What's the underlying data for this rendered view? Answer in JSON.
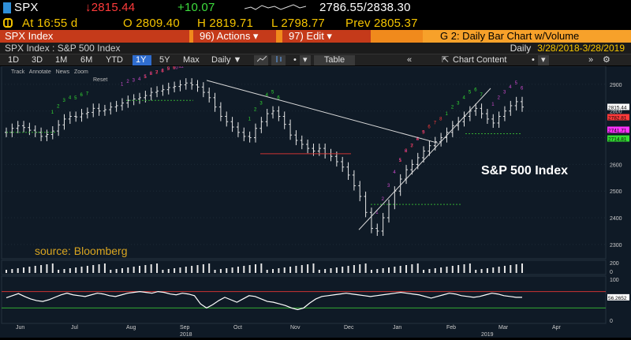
{
  "quote": {
    "ticker": "SPX",
    "last": "↓2815.44",
    "change": "+10.07",
    "range52": "2786.55/2838.30",
    "time": "At 16:55 d",
    "open": "O 2809.40",
    "high": "H 2819.71",
    "low": "L 2798.77",
    "prev": "Prev 2805.37"
  },
  "function_bar": {
    "title": "SPX Index",
    "actions": "96) Actions ▾",
    "edit": "97) Edit ▾",
    "chart_name": "G 2: Daily Bar Chart w/Volume"
  },
  "subtitle": {
    "security": "SPX Index : S&P 500 Index",
    "period_label": "Daily",
    "date_range": "3/28/2018-3/28/2019"
  },
  "toolbar": {
    "ranges": [
      "1D",
      "3D",
      "1M",
      "6M",
      "YTD",
      "1Y",
      "5Y",
      "Max"
    ],
    "selected_range": "1Y",
    "frequency": "Daily ▼",
    "table": "Table",
    "chart_content": "Chart Content"
  },
  "chart_tools": {
    "track": "Track",
    "annotate": "Annotate",
    "news": "News",
    "zoom": "Zoom",
    "reset": "Reset"
  },
  "chart_data": {
    "type": "bar",
    "title": "S&P 500 Index",
    "source_note": "source: Bloomberg",
    "y_ticks": [
      "2900",
      "2800",
      "2700",
      "2600",
      "2500",
      "2400",
      "2300"
    ],
    "x_months": [
      "Jun",
      "Jul",
      "Aug",
      "Sep",
      "Oct",
      "Nov",
      "Dec",
      "Jan",
      "Feb",
      "Mar",
      "Apr"
    ],
    "x_years": [
      "2018",
      "2019"
    ],
    "ylim": [
      2270,
      2950
    ],
    "price_labels": [
      {
        "value": "2815.44",
        "color": "#ffffff"
      },
      {
        "value": "2782.81",
        "color": "#ff3b3b"
      },
      {
        "value": "2741.71",
        "color": "#ff33ff"
      },
      {
        "value": "2714.81",
        "color": "#33dd33"
      }
    ],
    "closes": [
      2720,
      2735,
      2745,
      2738,
      2728,
      2720,
      2705,
      2712,
      2725,
      2748,
      2770,
      2780,
      2778,
      2790,
      2795,
      2810,
      2800,
      2805,
      2815,
      2820,
      2830,
      2840,
      2845,
      2850,
      2858,
      2870,
      2875,
      2880,
      2888,
      2892,
      2898,
      2905,
      2898,
      2890,
      2870,
      2850,
      2815,
      2780,
      2760,
      2740,
      2720,
      2705,
      2700,
      2735,
      2760,
      2790,
      2800,
      2780,
      2750,
      2710,
      2690,
      2675,
      2660,
      2650,
      2660,
      2640,
      2630,
      2610,
      2590,
      2560,
      2520,
      2480,
      2420,
      2360,
      2350,
      2400,
      2450,
      2500,
      2545,
      2580,
      2600,
      2625,
      2650,
      2670,
      2685,
      2700,
      2720,
      2745,
      2760,
      2780,
      2800,
      2810,
      2790,
      2770,
      2755,
      2780,
      2800,
      2820,
      2835,
      2815
    ],
    "volume_ticks": [
      "200",
      "0"
    ],
    "rsi_ticks": [
      "100",
      "56.2652",
      "0"
    ],
    "rsi_value": "56.2652",
    "rsi": [
      55,
      60,
      65,
      58,
      52,
      48,
      46,
      50,
      56,
      62,
      66,
      62,
      60,
      58,
      62,
      66,
      64,
      60,
      58,
      62,
      66,
      68,
      70,
      68,
      66,
      70,
      68,
      64,
      62,
      66,
      64,
      60,
      40,
      30,
      38,
      48,
      56,
      50,
      44,
      52,
      60,
      58,
      52,
      46,
      44,
      40,
      36,
      30,
      26,
      30,
      42,
      52,
      58,
      60,
      62,
      64,
      66,
      64,
      62,
      60,
      58,
      60,
      62,
      64,
      66,
      68,
      66,
      64,
      62,
      58,
      54,
      58,
      62,
      66,
      64,
      60,
      58,
      56,
      58,
      62,
      66,
      64,
      60,
      58,
      56,
      56
    ]
  },
  "colors": {
    "background": "#0f1a26",
    "bars": "#e6e6e6",
    "trendline": "#d9d9d9",
    "countdown_red": "#ff3b3b",
    "countdown_green": "#33dd33",
    "countdown_magenta": "#d04bd0",
    "title_accent": "#c53a1a",
    "function_bar": "#f08a1c"
  }
}
